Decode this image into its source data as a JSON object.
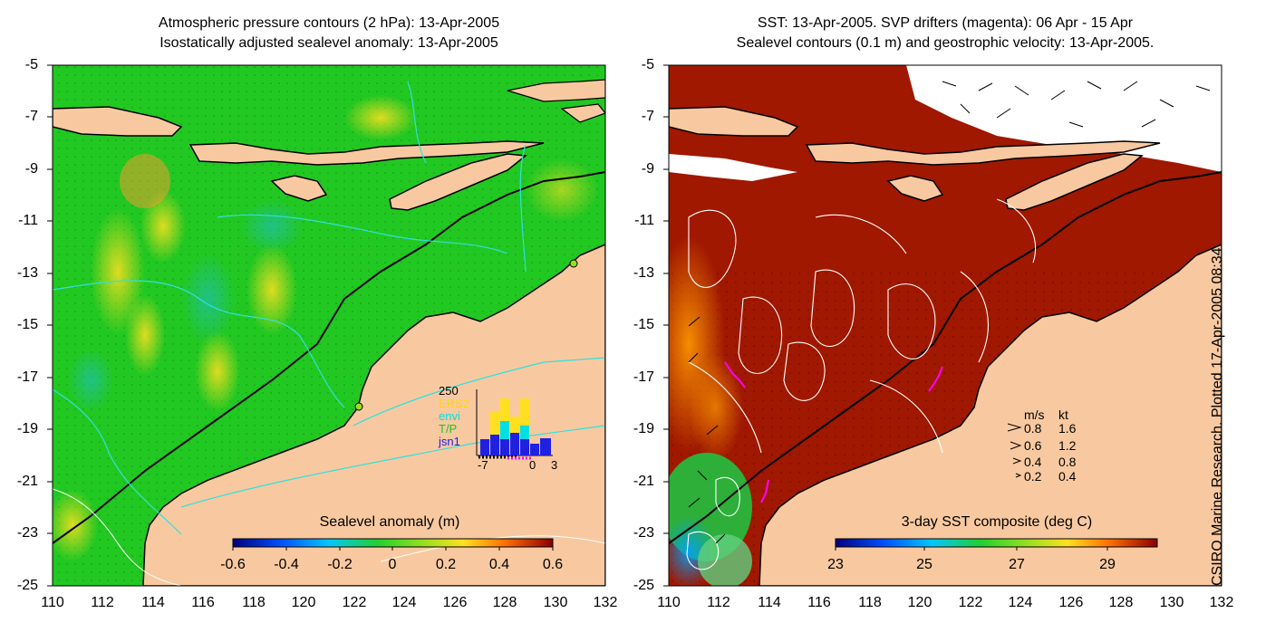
{
  "left_panel": {
    "title_line1": "Atmospheric pressure contours (2 hPa): 13-Apr-2005",
    "title_line2": "Isostatically adjusted sealevel anomaly: 13-Apr-2005",
    "colorbar_title": "Sealevel anomaly (m)",
    "colorbar_ticks": [
      "-0.6",
      "-0.4",
      "-0.2",
      "0",
      "0.2",
      "0.4",
      "0.6"
    ],
    "inset": {
      "ymax_label": "250",
      "legend": [
        {
          "label": "ERS2",
          "color": "#ffd800"
        },
        {
          "label": "envi",
          "color": "#00e0e0"
        },
        {
          "label": "T/P",
          "color": "#20c020"
        },
        {
          "label": "jsn1",
          "color": "#2020e0"
        }
      ],
      "x_labels": [
        "-7",
        "0",
        "3"
      ]
    }
  },
  "right_panel": {
    "title_line1": "SST: 13-Apr-2005. SVP drifters (magenta): 06 Apr - 15 Apr",
    "title_line2": "Sealevel contours (0.1 m) and geostrophic velocity: 13-Apr-2005.",
    "colorbar_title": "3-day SST composite (deg C)",
    "colorbar_ticks": [
      "23",
      "25",
      "27",
      "29"
    ],
    "velocity_legend": {
      "header_ms": "m/s",
      "header_kt": "kt",
      "rows": [
        {
          "ms": "0.8",
          "kt": "1.6"
        },
        {
          "ms": "0.6",
          "kt": "1.2"
        },
        {
          "ms": "0.4",
          "kt": "0.8"
        },
        {
          "ms": "0.2",
          "kt": "0.4"
        }
      ]
    }
  },
  "axes": {
    "lat_ticks": [
      "-5",
      "-7",
      "-9",
      "-11",
      "-13",
      "-15",
      "-17",
      "-19",
      "-21",
      "-23",
      "-25"
    ],
    "lon_ticks": [
      "110",
      "112",
      "114",
      "116",
      "118",
      "120",
      "122",
      "124",
      "126",
      "128",
      "130",
      "132"
    ]
  },
  "credit": "CSIRO Marine Research. Plotted 17-Apr-2005 08:34",
  "colors": {
    "land": "#f8c9a0",
    "sea_green": "#22c822",
    "sst_red": "#a01800",
    "contour_cyan": "#30e0e0"
  }
}
